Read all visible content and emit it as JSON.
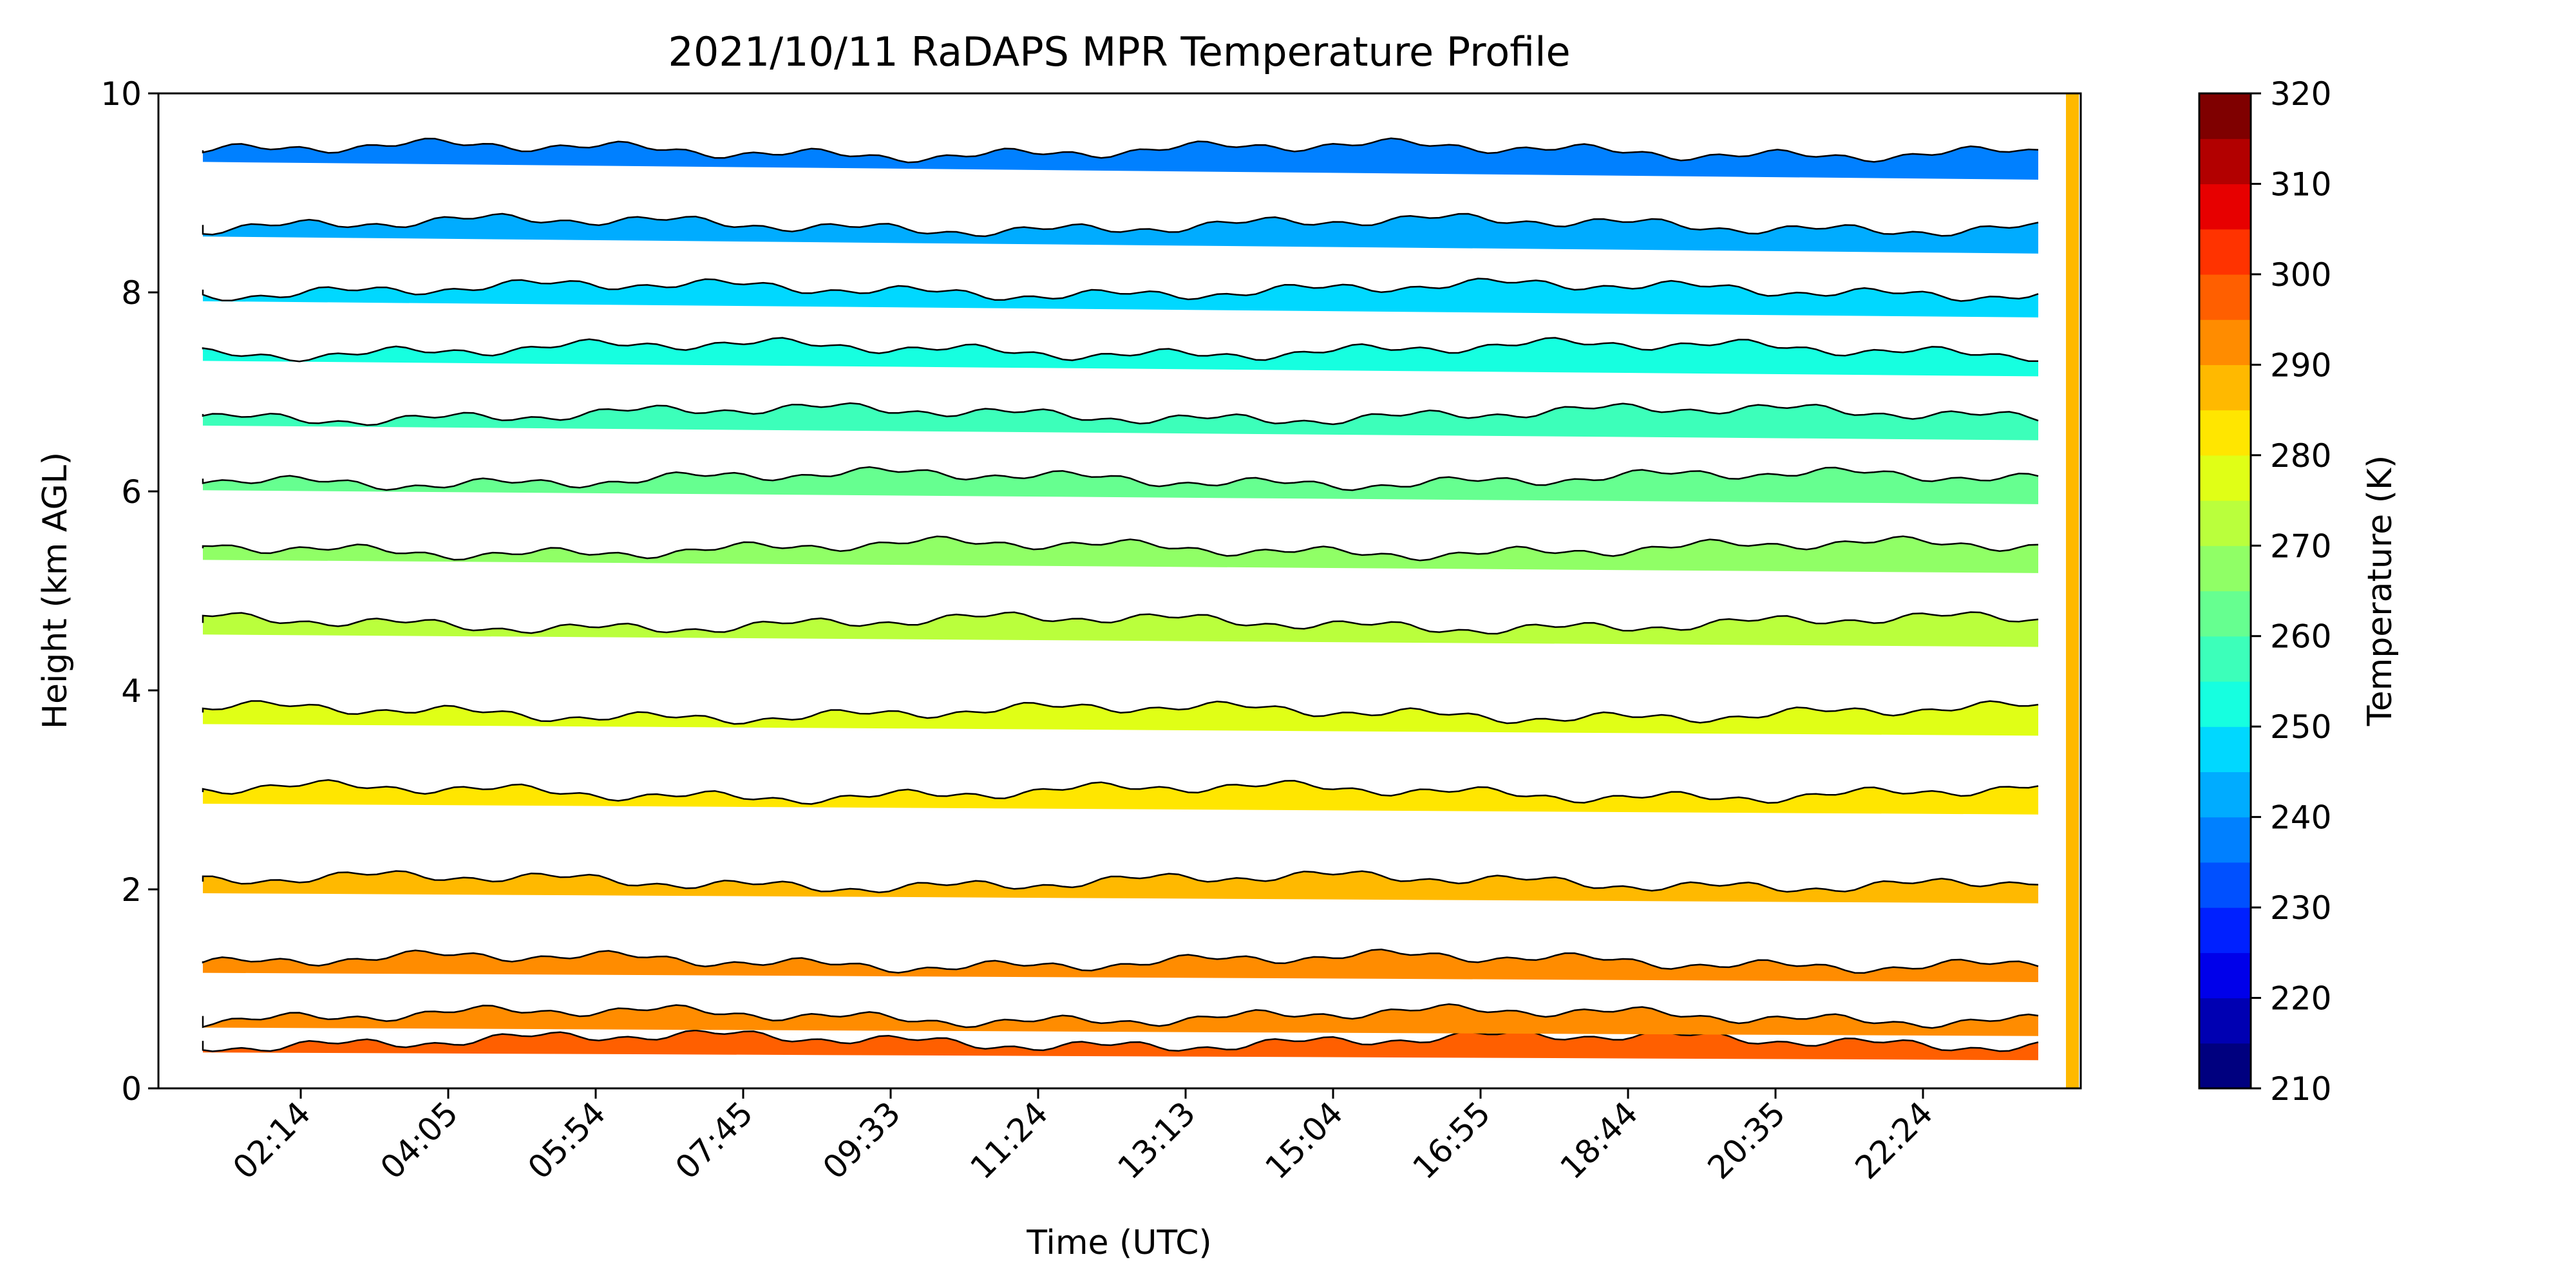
{
  "chart_data": {
    "type": "heatmap",
    "title": "2021/10/11 RaDAPS MPR Temperature Profile",
    "xlabel": "Time (UTC)",
    "ylabel": "Height (km AGL)",
    "x_ticks": [
      "02:14",
      "04:05",
      "05:54",
      "07:45",
      "09:33",
      "11:24",
      "13:13",
      "15:04",
      "16:55",
      "18:44",
      "20:35",
      "22:24"
    ],
    "y_ticks": [
      "0",
      "2",
      "4",
      "6",
      "8",
      "10"
    ],
    "ylim": [
      0,
      10
    ],
    "grid": false,
    "colorbar": {
      "label": "Temperature (K)",
      "ticks": [
        "210",
        "220",
        "230",
        "240",
        "250",
        "260",
        "270",
        "280",
        "290",
        "300",
        "310",
        "320"
      ],
      "range": [
        210,
        320
      ],
      "levels": [
        210,
        215,
        220,
        225,
        230,
        235,
        240,
        245,
        250,
        255,
        260,
        265,
        270,
        275,
        280,
        285,
        290,
        295,
        300,
        305,
        310,
        315,
        320
      ],
      "colors": [
        "#00007f",
        "#0000b2",
        "#0000ea",
        "#0020ff",
        "#0050ff",
        "#0080ff",
        "#00acff",
        "#00d8ff",
        "#16ffe0",
        "#3cffba",
        "#66ff90",
        "#90ff66",
        "#baff3c",
        "#e0ff16",
        "#ffe600",
        "#ffb900",
        "#ff8c00",
        "#ff5f00",
        "#ff3300",
        "#e70000",
        "#b20000",
        "#7f0000"
      ]
    },
    "series": [
      {
        "height_km": 0.4,
        "temperature_K": 297,
        "band_color": "#ff5f00"
      },
      {
        "height_km": 0.65,
        "temperature_K": 292,
        "band_color": "#ff8c00"
      },
      {
        "height_km": 1.2,
        "temperature_K": 291,
        "band_color": "#ff8c00"
      },
      {
        "height_km": 2.0,
        "temperature_K": 287,
        "band_color": "#ffb900"
      },
      {
        "height_km": 2.9,
        "temperature_K": 282,
        "band_color": "#ffe600"
      },
      {
        "height_km": 3.7,
        "temperature_K": 277,
        "band_color": "#e0ff16"
      },
      {
        "height_km": 4.6,
        "temperature_K": 272,
        "band_color": "#baff3c"
      },
      {
        "height_km": 5.35,
        "temperature_K": 267,
        "band_color": "#90ff66"
      },
      {
        "height_km": 6.05,
        "temperature_K": 262,
        "band_color": "#66ff90"
      },
      {
        "height_km": 6.7,
        "temperature_K": 257,
        "band_color": "#3cffba"
      },
      {
        "height_km": 7.35,
        "temperature_K": 252,
        "band_color": "#16ffe0"
      },
      {
        "height_km": 7.95,
        "temperature_K": 247,
        "band_color": "#00d8ff"
      },
      {
        "height_km": 8.6,
        "temperature_K": 242,
        "band_color": "#00acff"
      },
      {
        "height_km": 9.35,
        "temperature_K": 237,
        "band_color": "#0080ff"
      }
    ]
  }
}
